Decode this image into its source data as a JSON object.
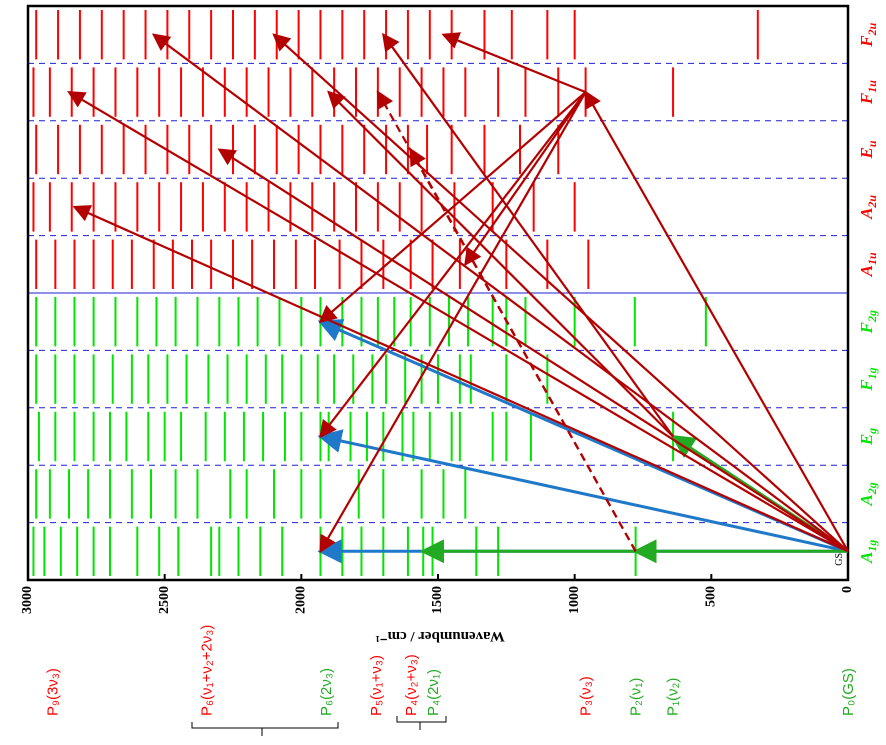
{
  "chart_data": {
    "type": "level-diagram",
    "x_label": "Wavenumber / cm⁻¹",
    "xlim": [
      0,
      3000
    ],
    "x_reversed": true,
    "xticks": [
      0,
      500,
      1000,
      1500,
      2000,
      2500,
      3000
    ],
    "species": [
      {
        "name": "A",
        "sub": "1g",
        "color": "#00e600",
        "levels": [
          777,
          1280,
          1360,
          1520,
          1554,
          1610,
          1700,
          1780,
          1850,
          1930,
          2070,
          2150,
          2230,
          2300,
          2330,
          2450,
          2520,
          2600,
          2700,
          2760,
          2820,
          2880,
          2940,
          2980
        ]
      },
      {
        "name": "A",
        "sub": "2g",
        "color": "#00e600",
        "levels": [
          1400,
          1480,
          1560,
          1700,
          1790,
          1930,
          2000,
          2100,
          2200,
          2260,
          2380,
          2460,
          2550,
          2620,
          2700,
          2780,
          2850,
          2920,
          2970
        ]
      },
      {
        "name": "E",
        "sub": "g",
        "color": "#00e600",
        "levels": [
          640,
          1160,
          1250,
          1300,
          1420,
          1450,
          1530,
          1590,
          1630,
          1700,
          1760,
          1820,
          1900,
          1930,
          2000,
          2060,
          2140,
          2210,
          2280,
          2350,
          2440,
          2500,
          2560,
          2640,
          2700,
          2760,
          2830,
          2900,
          2960
        ]
      },
      {
        "name": "F",
        "sub": "1g",
        "color": "#00e600",
        "levels": [
          1100,
          1250,
          1380,
          1420,
          1500,
          1560,
          1620,
          1690,
          1740,
          1810,
          1880,
          1940,
          2000,
          2070,
          2130,
          2200,
          2270,
          2340,
          2420,
          2490,
          2560,
          2620,
          2690,
          2760,
          2830,
          2900,
          2970
        ]
      },
      {
        "name": "F",
        "sub": "2g",
        "color": "#00e600",
        "levels": [
          520,
          780,
          1000,
          1180,
          1250,
          1300,
          1390,
          1460,
          1530,
          1600,
          1660,
          1720,
          1780,
          1850,
          1930,
          2000,
          2080,
          2160,
          2230,
          2300,
          2380,
          2460,
          2530,
          2600,
          2680,
          2760,
          2830,
          2900,
          2970
        ]
      },
      {
        "name": "A",
        "sub": "1u",
        "color": "#ff0000",
        "levels": [
          950,
          1100,
          1250,
          1420,
          1520,
          1600,
          1700,
          1780,
          1860,
          1950,
          2020,
          2100,
          2180,
          2250,
          2330,
          2400,
          2470,
          2540,
          2620,
          2690,
          2760,
          2830,
          2900,
          2970
        ]
      },
      {
        "name": "A",
        "sub": "2u",
        "color": "#ff0000",
        "levels": [
          1000,
          1150,
          1300,
          1440,
          1560,
          1640,
          1720,
          1800,
          1880,
          1960,
          2040,
          2120,
          2200,
          2280,
          2360,
          2440,
          2520,
          2600,
          2680,
          2760,
          2840,
          2920,
          2980
        ]
      },
      {
        "name": "E",
        "sub": "u",
        "color": "#ff0000",
        "levels": [
          1060,
          1200,
          1330,
          1450,
          1540,
          1610,
          1690,
          1770,
          1850,
          1930,
          2010,
          2090,
          2170,
          2250,
          2330,
          2410,
          2490,
          2570,
          2650,
          2730,
          2810,
          2890,
          2970
        ]
      },
      {
        "name": "F",
        "sub": "1u",
        "color": "#ff0000",
        "levels": [
          640,
          960,
          1060,
          1180,
          1280,
          1400,
          1480,
          1560,
          1640,
          1720,
          1800,
          1880,
          1960,
          2040,
          2120,
          2200,
          2280,
          2360,
          2440,
          2520,
          2600,
          2680,
          2760,
          2840,
          2920,
          2980
        ]
      },
      {
        "name": "F",
        "sub": "2u",
        "color": "#ff0000",
        "levels": [
          330,
          1000,
          1100,
          1230,
          1330,
          1450,
          1530,
          1610,
          1690,
          1770,
          1850,
          1930,
          2010,
          2090,
          2170,
          2250,
          2330,
          2410,
          2490,
          2570,
          2650,
          2730,
          2810,
          2890,
          2970
        ]
      }
    ],
    "level_labels": [
      {
        "text": "GS",
        "energy": 0,
        "row": 0
      }
    ],
    "transitions": [
      {
        "from": [
          0,
          0
        ],
        "to": [
          1930,
          0
        ],
        "color": "#1f78c8",
        "dashed": false
      },
      {
        "from": [
          0,
          0
        ],
        "to": [
          1930,
          2
        ],
        "color": "#1f78c8",
        "dashed": false
      },
      {
        "from": [
          0,
          0
        ],
        "to": [
          1930,
          4
        ],
        "color": "#1f78c8",
        "dashed": false
      },
      {
        "from": [
          0,
          0
        ],
        "to": [
          777,
          0
        ],
        "color": "#22aa22",
        "dashed": false
      },
      {
        "from": [
          777,
          0
        ],
        "to": [
          1555,
          0
        ],
        "color": "#22aa22",
        "dashed": false
      },
      {
        "from": [
          0,
          0
        ],
        "to": [
          640,
          2
        ],
        "color": "#22aa22",
        "dashed": false
      },
      {
        "from": [
          0,
          0
        ],
        "to": [
          960,
          8
        ],
        "color": "#b30000",
        "dashed": false
      },
      {
        "from": [
          0,
          0
        ],
        "to": [
          2850,
          8
        ],
        "color": "#b30000",
        "dashed": false
      },
      {
        "from": [
          0,
          0
        ],
        "to": [
          2830,
          6
        ],
        "color": "#b30000",
        "dashed": false
      },
      {
        "from": [
          0,
          0
        ],
        "to": [
          2540,
          9
        ],
        "color": "#b30000",
        "dashed": false
      },
      {
        "from": [
          0,
          0
        ],
        "to": [
          2300,
          7
        ],
        "color": "#b30000",
        "dashed": false
      },
      {
        "from": [
          0,
          0
        ],
        "to": [
          2100,
          9
        ],
        "color": "#b30000",
        "dashed": false
      },
      {
        "from": [
          640,
          2
        ],
        "to": [
          1900,
          8
        ],
        "color": "#b30000",
        "dashed": false
      },
      {
        "from": [
          640,
          2
        ],
        "to": [
          1700,
          9
        ],
        "color": "#b30000",
        "dashed": false
      },
      {
        "from": [
          777,
          0
        ],
        "to": [
          1720,
          8
        ],
        "color": "#b30000",
        "dashed": true
      },
      {
        "from": [
          777,
          0
        ],
        "to": [
          1600,
          7
        ],
        "color": "#b30000",
        "dashed": true
      },
      {
        "from": [
          960,
          8
        ],
        "to": [
          1930,
          0
        ],
        "color": "#b30000",
        "dashed": false
      },
      {
        "from": [
          960,
          8
        ],
        "to": [
          1930,
          2
        ],
        "color": "#b30000",
        "dashed": false
      },
      {
        "from": [
          960,
          8
        ],
        "to": [
          1930,
          4
        ],
        "color": "#b30000",
        "dashed": false
      },
      {
        "from": [
          960,
          8
        ],
        "to": [
          1480,
          9
        ],
        "color": "#b30000",
        "dashed": false
      },
      {
        "from": [
          960,
          8
        ],
        "to": [
          1400,
          5
        ],
        "color": "#b30000",
        "dashed": false
      }
    ],
    "states": [
      {
        "label": "P₉(3ν₃)",
        "energy": 2910,
        "color": "#ff0000"
      },
      {
        "label": "P₆(ν₁+ν₂+2ν₃)",
        "energy": 2347,
        "color": "#ff0000"
      },
      {
        "label": "P₆(2ν₃)",
        "energy": 1909,
        "color": "#22aa22"
      },
      {
        "label": "P₅(ν₁+ν₃)",
        "energy": 1726,
        "color": "#ff0000"
      },
      {
        "label": "P₄(ν₂+ν₃)",
        "energy": 1599,
        "color": "#ff0000"
      },
      {
        "label": "P₄(2ν₁)",
        "energy": 1518,
        "color": "#22aa22"
      },
      {
        "label": "P₃(ν₃)",
        "energy": 960,
        "color": "#ff0000"
      },
      {
        "label": "P₂(ν₁)",
        "energy": 777,
        "color": "#22aa22"
      },
      {
        "label": "P₁(ν₂)",
        "energy": 642,
        "color": "#22aa22"
      },
      {
        "label": "P₀(GS)",
        "energy": 0,
        "color": "#22aa22"
      }
    ]
  }
}
